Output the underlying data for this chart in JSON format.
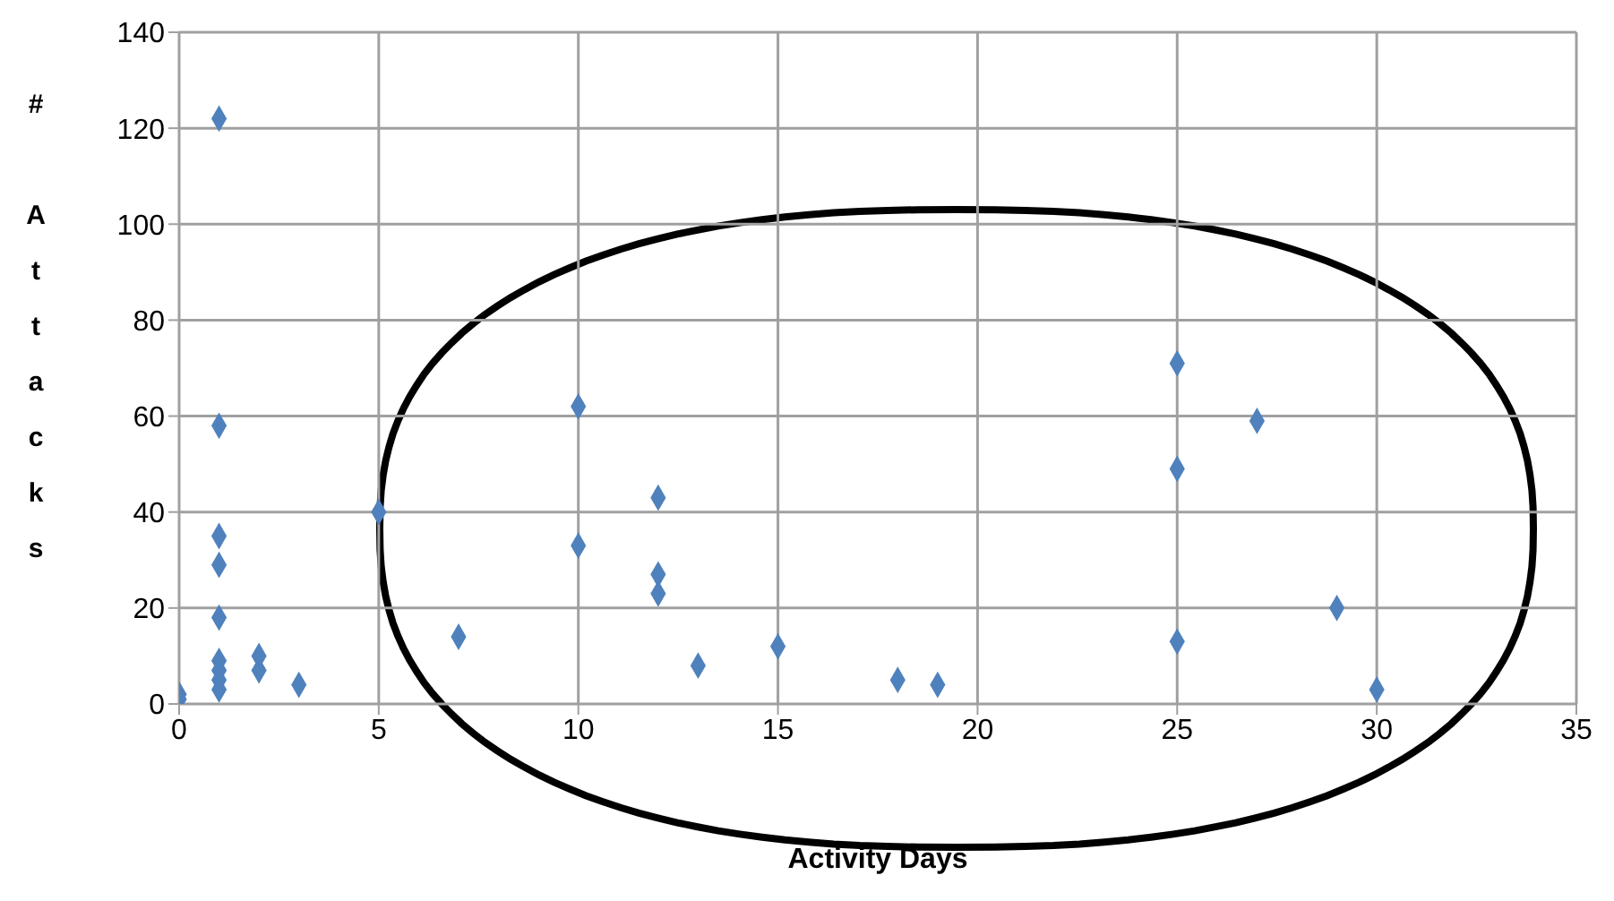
{
  "chart_data": {
    "type": "scatter",
    "xlabel": "Activity Days",
    "ylabel": "# Attacks",
    "x": [
      0,
      0,
      1,
      1,
      1,
      1,
      1,
      1,
      1,
      1,
      1,
      2,
      2,
      3,
      5,
      7,
      10,
      10,
      12,
      12,
      12,
      13,
      15,
      18,
      19,
      25,
      25,
      25,
      27,
      29,
      30
    ],
    "values": [
      1,
      2,
      122,
      58,
      35,
      29,
      18,
      9,
      7,
      5,
      3,
      10,
      7,
      4,
      40,
      14,
      62,
      33,
      43,
      27,
      23,
      8,
      12,
      5,
      4,
      71,
      49,
      13,
      59,
      20,
      3
    ],
    "color": "#4f81bd",
    "marker": "diamond",
    "xlim": [
      0,
      35
    ],
    "xticks": [
      0,
      5,
      10,
      15,
      20,
      25,
      30,
      35
    ],
    "ylim": [
      0,
      140
    ],
    "yticks": [
      0,
      20,
      40,
      60,
      80,
      100,
      120,
      140
    ],
    "grid": true
  }
}
